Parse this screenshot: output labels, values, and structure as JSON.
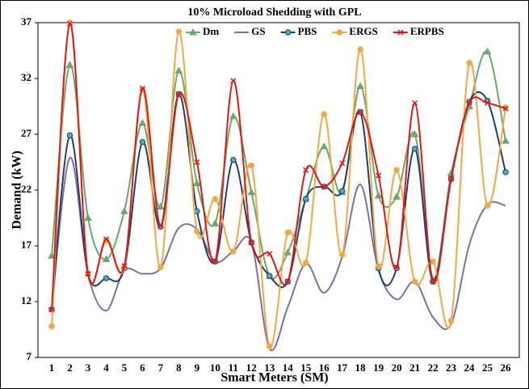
{
  "chart_data": {
    "type": "line",
    "title": "10% Microload Shedding with GPL",
    "x_label": "Smart Meters (SM)",
    "y_label": "Demand (kW)",
    "categories": [
      "1",
      "2",
      "3",
      "4",
      "5",
      "6",
      "7",
      "8",
      "9",
      "10",
      "11",
      "12",
      "13",
      "14",
      "15",
      "16",
      "17",
      "18",
      "19",
      "20",
      "21",
      "22",
      "23",
      "24",
      "25",
      "26"
    ],
    "ylim": [
      7,
      37
    ],
    "yticks": [
      7,
      12,
      17,
      22,
      27,
      32,
      37
    ],
    "smooth": true,
    "legend": "top",
    "series": [
      {
        "name": "Dm",
        "color": "#6aa86a",
        "marker": "triangle",
        "values": [
          16.1,
          33.2,
          19.5,
          15.8,
          20.1,
          28.0,
          20.5,
          32.7,
          22.6,
          19.0,
          28.6,
          21.8,
          14.3,
          16.4,
          21.2,
          25.9,
          21.8,
          31.3,
          21.5,
          21.4,
          27.0,
          14.0,
          23.5,
          29.5,
          34.4,
          26.4
        ]
      },
      {
        "name": "GS",
        "color": "#7a70a8",
        "marker": "none",
        "values": [
          11.3,
          24.9,
          14.5,
          11.2,
          14.8,
          14.5,
          15.0,
          18.6,
          18.5,
          15.6,
          16.5,
          17.3,
          7.8,
          11.5,
          15.4,
          12.8,
          16.0,
          22.5,
          14.8,
          12.2,
          13.8,
          10.6,
          10.0,
          17.1,
          20.7,
          20.6
        ]
      },
      {
        "name": "PBS",
        "color": "#1f3f6e",
        "marker": "circle",
        "values": [
          11.3,
          26.9,
          14.5,
          14.1,
          15.0,
          26.3,
          18.7,
          30.6,
          20.1,
          15.6,
          24.7,
          17.3,
          14.3,
          13.8,
          21.2,
          22.3,
          21.9,
          29.0,
          15.0,
          15.0,
          25.7,
          13.8,
          23.0,
          29.9,
          30.0,
          23.6
        ]
      },
      {
        "name": "ERGS",
        "color": "#f4a742",
        "marker": "circle",
        "values": [
          9.8,
          37.0,
          14.5,
          17.5,
          15.1,
          31.0,
          15.1,
          36.2,
          18.3,
          21.2,
          16.5,
          24.2,
          8.0,
          18.2,
          15.5,
          28.8,
          16.2,
          34.6,
          15.2,
          23.8,
          13.8,
          15.6,
          10.3,
          33.4,
          20.6,
          29.4
        ]
      },
      {
        "name": "ERPBS",
        "color": "#e01818",
        "marker": "x",
        "values": [
          11.3,
          36.9,
          14.5,
          17.6,
          15.2,
          31.1,
          18.8,
          30.6,
          24.5,
          15.6,
          31.8,
          17.3,
          16.3,
          13.8,
          23.8,
          22.3,
          24.4,
          29.0,
          23.3,
          15.1,
          29.8,
          13.8,
          23.0,
          29.8,
          29.8,
          29.3
        ]
      }
    ]
  }
}
